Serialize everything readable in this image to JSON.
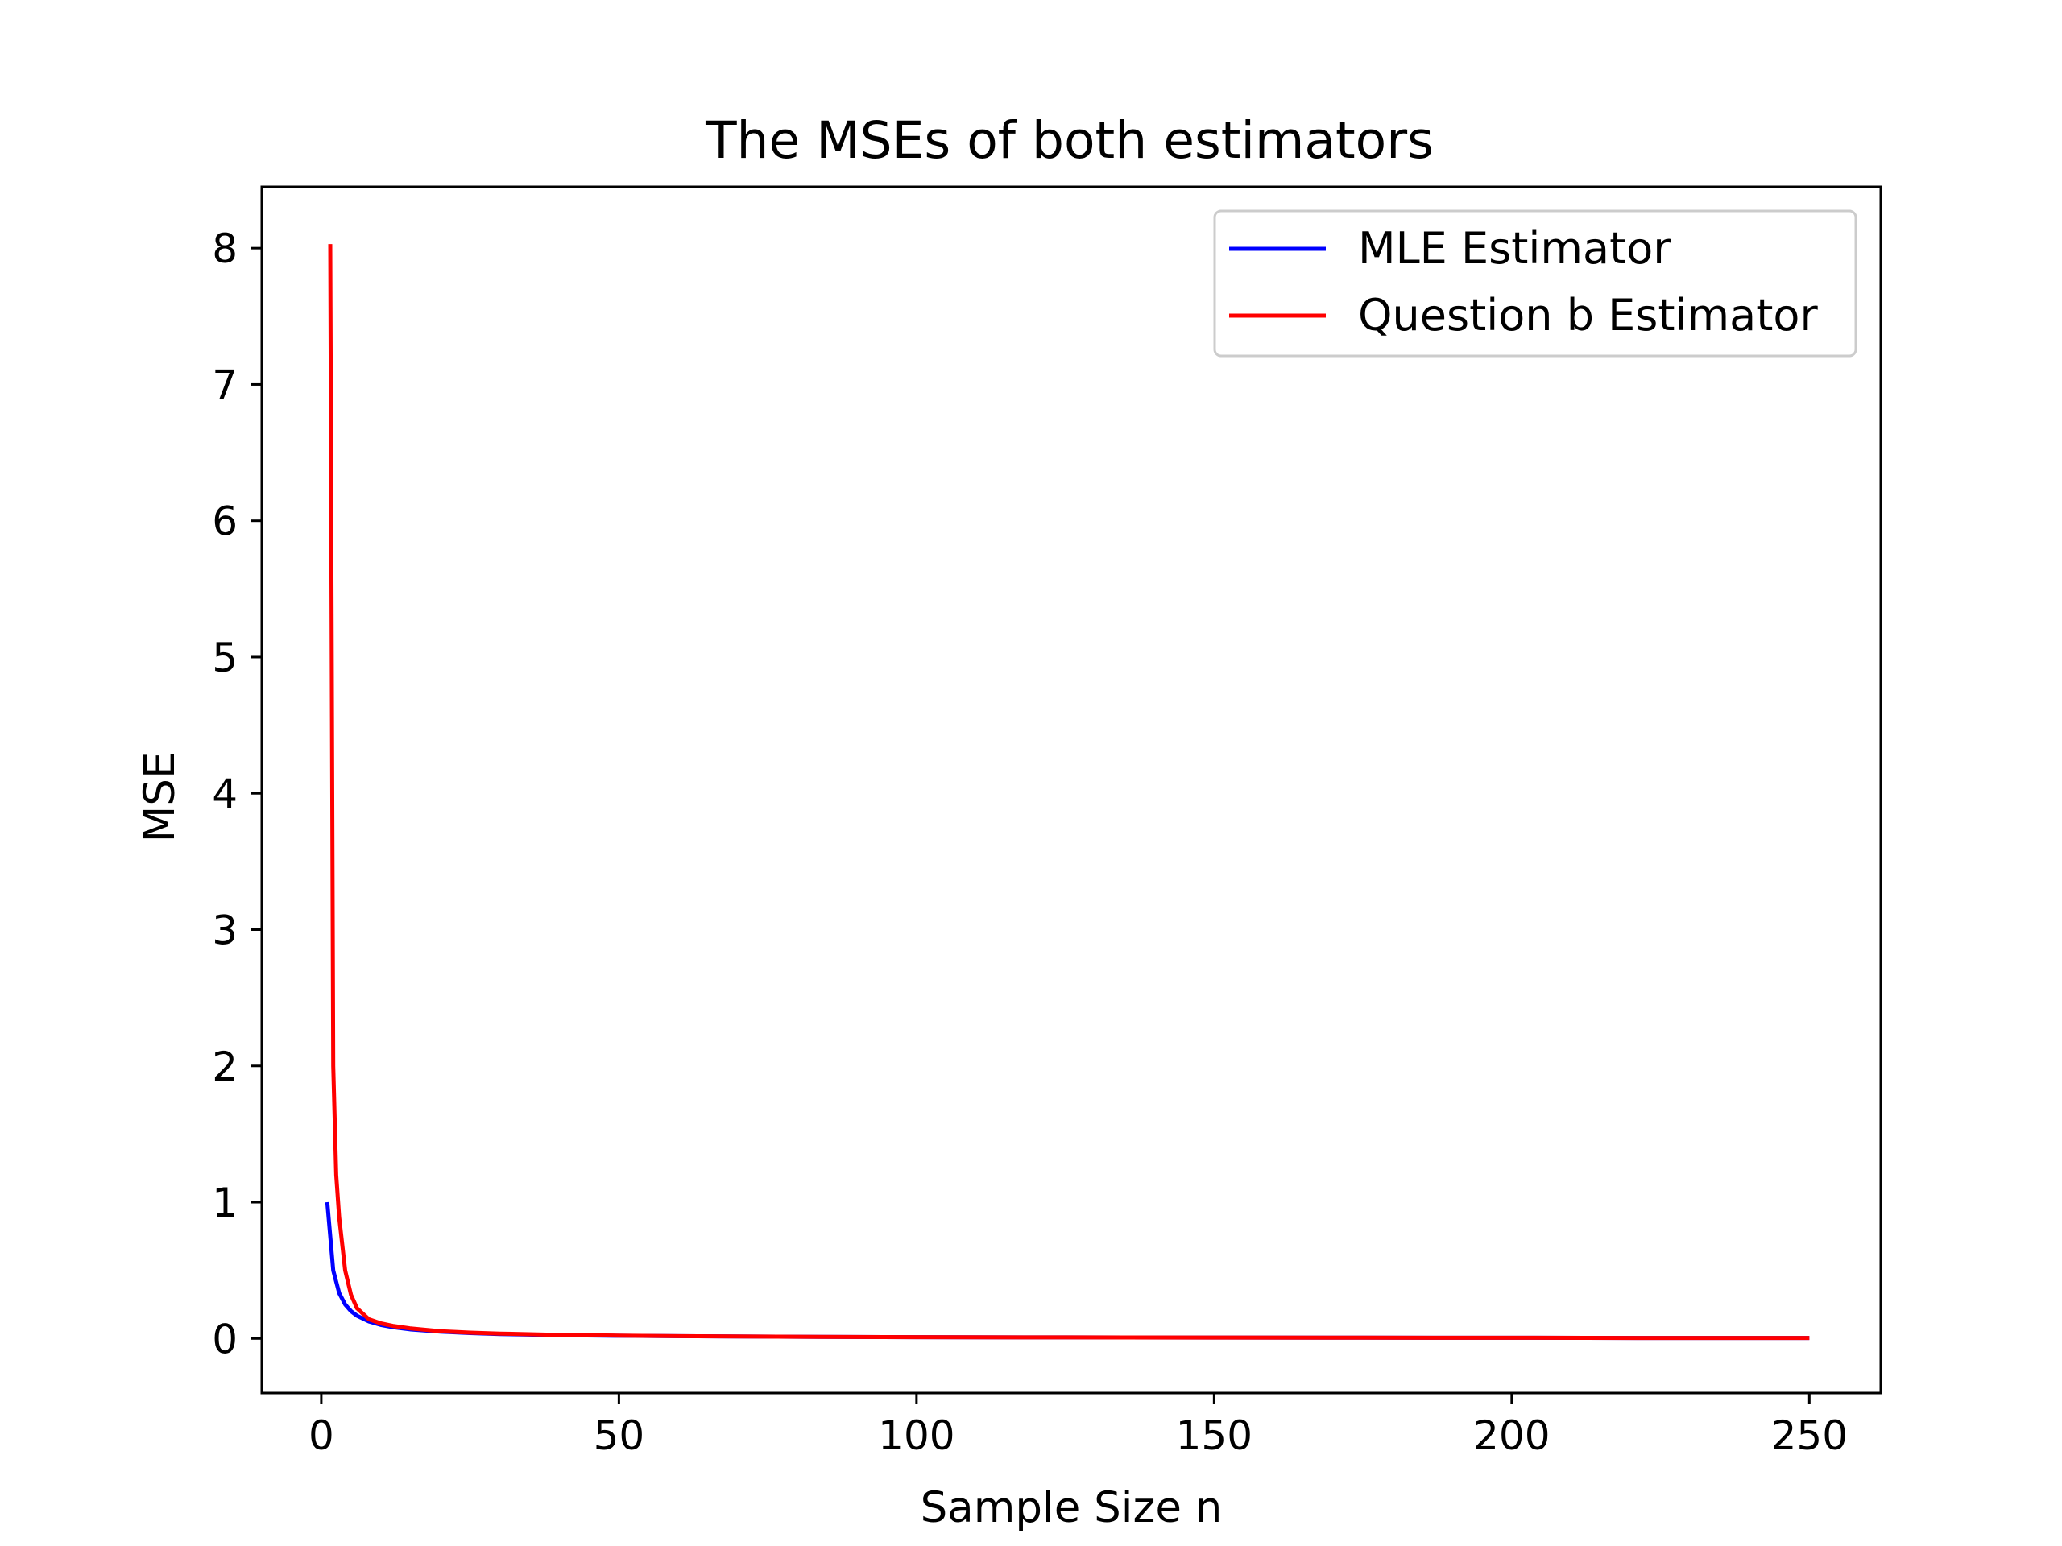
{
  "chart_data": {
    "type": "line",
    "title": "The MSEs of both estimators",
    "xlabel": "Sample Size n",
    "ylabel": "MSE",
    "xlim": [
      -10,
      262
    ],
    "ylim": [
      -0.4,
      8.45
    ],
    "xticks": [
      0,
      50,
      100,
      150,
      200,
      250
    ],
    "yticks": [
      0,
      1,
      2,
      3,
      4,
      5,
      6,
      7,
      8
    ],
    "grid": false,
    "legend_position": "top-right",
    "series": [
      {
        "name": "MLE Estimator",
        "color": "#0000ff",
        "x": [
          1,
          2,
          3,
          4,
          5,
          6,
          8,
          10,
          12,
          15,
          20,
          25,
          30,
          40,
          50,
          60,
          80,
          100,
          125,
          150,
          175,
          200,
          225,
          250
        ],
        "y": [
          1.0,
          0.5,
          0.333,
          0.25,
          0.2,
          0.167,
          0.125,
          0.1,
          0.083,
          0.067,
          0.05,
          0.04,
          0.033,
          0.025,
          0.02,
          0.017,
          0.013,
          0.01,
          0.008,
          0.007,
          0.006,
          0.005,
          0.004,
          0.004
        ]
      },
      {
        "name": "Question b Estimator",
        "color": "#ff0000",
        "x": [
          1.5,
          2,
          2.5,
          3,
          4,
          5,
          6,
          8,
          10,
          12,
          15,
          20,
          25,
          30,
          40,
          50,
          60,
          80,
          100,
          125,
          150,
          175,
          200,
          225,
          250
        ],
        "y": [
          8.03,
          2.0,
          1.2,
          0.889,
          0.5,
          0.32,
          0.222,
          0.141,
          0.111,
          0.093,
          0.074,
          0.054,
          0.043,
          0.036,
          0.026,
          0.021,
          0.017,
          0.013,
          0.01,
          0.008,
          0.007,
          0.006,
          0.005,
          0.004,
          0.004
        ]
      }
    ]
  }
}
